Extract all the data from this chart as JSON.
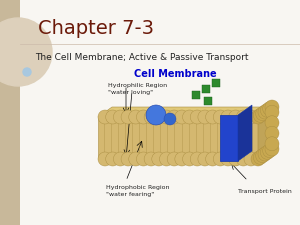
{
  "background_color": "#f0ece4",
  "left_strip_color": "#c8b89a",
  "title": "Chapter 7-3",
  "title_color": "#6b1a0a",
  "title_fontsize": 14,
  "subtitle": "The Cell Membrane; Active & Passive Transport",
  "subtitle_color": "#222222",
  "subtitle_fontsize": 6.5,
  "diagram_title": "Cell Membrane",
  "diagram_title_color": "#0000cc",
  "diagram_title_fontsize": 7,
  "label_hydrophilic": "Hydrophilic Region\n\"water loving\"",
  "label_hydrophobic": "Hydrophobic Region\n\"water fearing\"",
  "label_transport": "Transport Protein",
  "label_color": "#222222",
  "label_fontsize": 4.5,
  "circle_color": "#a8c8e0",
  "gold": "#d4b870",
  "gold_dark": "#a88c40",
  "blue_prot": "#2244cc",
  "green": "#2d8a2d"
}
